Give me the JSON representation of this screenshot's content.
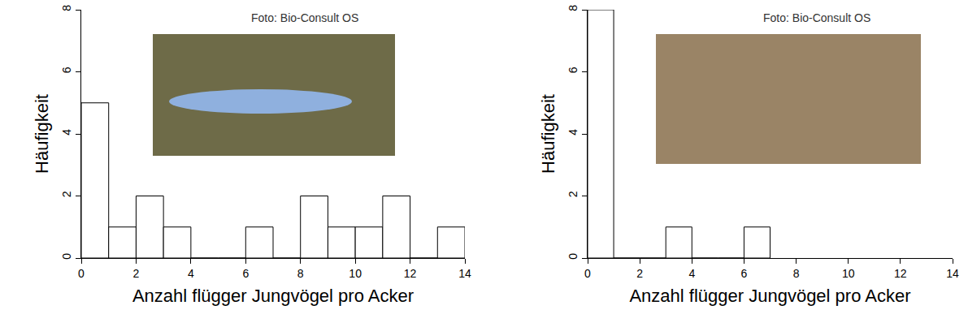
{
  "chart_data": [
    {
      "type": "histogram",
      "x_label": "Anzahl flügger Jungvögel pro Acker",
      "y_label": "Häufigkeit",
      "bins": [
        0,
        1,
        2,
        3,
        4,
        5,
        6,
        7,
        8,
        9,
        10,
        11,
        12,
        13,
        14
      ],
      "values": [
        5,
        1,
        2,
        1,
        0,
        0,
        1,
        0,
        2,
        1,
        1,
        2,
        0,
        1
      ],
      "color": "#ffffff",
      "xlim": [
        0,
        14
      ],
      "xticks": [
        0,
        2,
        4,
        6,
        8,
        10,
        12,
        14
      ],
      "ylim": [
        0,
        8
      ],
      "yticks": [
        0,
        2,
        4,
        6,
        8
      ],
      "grid": false,
      "annotations": [
        "Foto: Bio-Consult OS"
      ]
    },
    {
      "type": "histogram",
      "x_label": "Anzahl flügger Jungvögel pro Acker",
      "y_label": "Häufigkeit",
      "bins": [
        0,
        1,
        2,
        3,
        4,
        5,
        6,
        7
      ],
      "values": [
        8,
        0,
        0,
        1,
        0,
        0,
        1
      ],
      "color": "#ffffff",
      "xlim": [
        0,
        14
      ],
      "xticks": [
        0,
        2,
        4,
        6,
        8,
        10,
        12,
        14
      ],
      "ylim": [
        0,
        8
      ],
      "yticks": [
        0,
        2,
        4,
        6,
        8
      ],
      "grid": false,
      "annotations": [
        "Foto: Bio-Consult OS"
      ]
    }
  ]
}
